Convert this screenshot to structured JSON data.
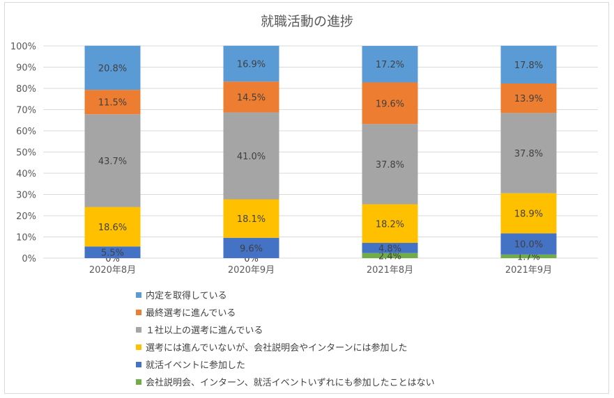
{
  "chart_data": {
    "type": "bar",
    "stacked": true,
    "percent": true,
    "title": "就職活動の進捗",
    "categories": [
      "2020年8月",
      "2020年9月",
      "2021年8月",
      "2021年9月"
    ],
    "y_ticks": [
      "0%",
      "10%",
      "20%",
      "30%",
      "40%",
      "50%",
      "60%",
      "70%",
      "80%",
      "90%",
      "100%"
    ],
    "ylim": [
      0,
      100
    ],
    "grid": true,
    "legend_position": "bottom",
    "series": [
      {
        "name": "会社説明会、インターン、就活イベントいずれにも参加したことはない",
        "color": "#70ad47",
        "values": [
          0,
          0,
          2.4,
          1.7
        ],
        "labels": [
          "0%",
          "0%",
          "2.4%",
          "1.7%"
        ]
      },
      {
        "name": "就活イベントに参加した",
        "color": "#4472c4",
        "values": [
          5.5,
          9.6,
          4.8,
          10.0
        ],
        "labels": [
          "5.5%",
          "9.6%",
          "4.8%",
          "10.0%"
        ]
      },
      {
        "name": "選考には進んでいないが、会社説明会やインターンには参加した",
        "color": "#ffc000",
        "values": [
          18.6,
          18.1,
          18.2,
          18.9
        ],
        "labels": [
          "18.6%",
          "18.1%",
          "18.2%",
          "18.9%"
        ]
      },
      {
        "name": "１社以上の選考に進んでいる",
        "color": "#a5a5a5",
        "values": [
          43.7,
          41.0,
          37.8,
          37.8
        ],
        "labels": [
          "43.7%",
          "41.0%",
          "37.8%",
          "37.8%"
        ]
      },
      {
        "name": "最終選考に進んでいる",
        "color": "#ed7d31",
        "values": [
          11.5,
          14.5,
          19.6,
          13.9
        ],
        "labels": [
          "11.5%",
          "14.5%",
          "19.6%",
          "13.9%"
        ]
      },
      {
        "name": "内定を取得している",
        "color": "#5b9bd5",
        "values": [
          20.8,
          16.9,
          17.2,
          17.8
        ],
        "labels": [
          "20.8%",
          "16.9%",
          "17.2%",
          "17.8%"
        ]
      }
    ],
    "legend_order": [
      5,
      4,
      3,
      2,
      1,
      0
    ]
  }
}
